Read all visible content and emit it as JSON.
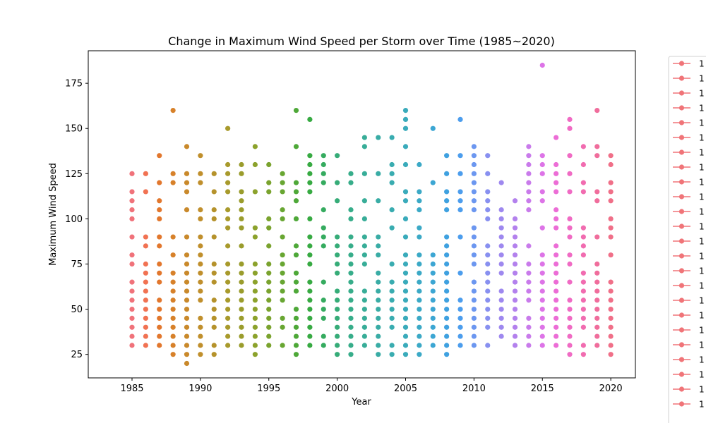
{
  "chart_data": {
    "type": "scatter",
    "title": "Change in Maximum Wind Speed per Storm over Time (1985~2020)",
    "xlabel": "Year",
    "ylabel": "Maximum Wind Speed",
    "xlim": [
      1981.8,
      2021.8
    ],
    "ylim": [
      12,
      193
    ],
    "xticks": [
      1985,
      1990,
      1995,
      2000,
      2005,
      2010,
      2015,
      2020
    ],
    "yticks": [
      25,
      50,
      75,
      100,
      125,
      150,
      175
    ],
    "grid": false,
    "legend": {
      "placement": "right-outside",
      "marker_color": "#f07478",
      "labels": [
        "1",
        "1",
        "1",
        "1",
        "1",
        "1",
        "1",
        "1",
        "1",
        "1",
        "1",
        "1",
        "1",
        "1",
        "1",
        "1",
        "1",
        "1",
        "1",
        "1",
        "1",
        "1",
        "1",
        "1"
      ]
    },
    "series": [
      {
        "x": 1985,
        "color": "#f0727a",
        "y": [
          30,
          35,
          40,
          45,
          50,
          55,
          60,
          65,
          75,
          80,
          90,
          100,
          105,
          110,
          115,
          125
        ]
      },
      {
        "x": 1986,
        "color": "#f17252",
        "y": [
          30,
          35,
          40,
          45,
          50,
          55,
          60,
          65,
          70,
          75,
          85,
          90,
          115,
          125
        ]
      },
      {
        "x": 1987,
        "color": "#e2772d",
        "y": [
          30,
          35,
          40,
          45,
          50,
          55,
          65,
          70,
          75,
          85,
          90,
          100,
          105,
          110,
          120,
          135
        ]
      },
      {
        "x": 1988,
        "color": "#d7812a",
        "y": [
          25,
          30,
          35,
          40,
          45,
          50,
          55,
          60,
          65,
          70,
          80,
          90,
          120,
          125,
          160
        ]
      },
      {
        "x": 1989,
        "color": "#c9892b",
        "y": [
          20,
          25,
          30,
          35,
          40,
          45,
          50,
          55,
          60,
          65,
          70,
          75,
          80,
          90,
          105,
          115,
          120,
          125,
          140
        ]
      },
      {
        "x": 1990,
        "color": "#c08f2c",
        "y": [
          25,
          30,
          35,
          40,
          45,
          55,
          60,
          65,
          70,
          75,
          80,
          85,
          90,
          100,
          105,
          120,
          125,
          135
        ]
      },
      {
        "x": 1991,
        "color": "#b5922b",
        "y": [
          25,
          30,
          40,
          45,
          50,
          55,
          65,
          70,
          75,
          90,
          100,
          105,
          115,
          125
        ]
      },
      {
        "x": 1992,
        "color": "#a89a2c",
        "y": [
          30,
          35,
          40,
          45,
          50,
          55,
          60,
          65,
          70,
          75,
          85,
          95,
          100,
          105,
          115,
          120,
          125,
          130,
          150
        ]
      },
      {
        "x": 1993,
        "color": "#9a9c2c",
        "y": [
          30,
          35,
          40,
          45,
          50,
          55,
          60,
          65,
          70,
          75,
          85,
          95,
          100,
          105,
          110,
          115,
          125,
          130
        ]
      },
      {
        "x": 1994,
        "color": "#8ca22c",
        "y": [
          25,
          30,
          35,
          40,
          45,
          50,
          55,
          60,
          65,
          70,
          75,
          90,
          95,
          115,
          130,
          140
        ]
      },
      {
        "x": 1995,
        "color": "#7aa32e",
        "y": [
          30,
          35,
          40,
          45,
          50,
          55,
          60,
          65,
          70,
          75,
          85,
          95,
          100,
          115,
          120,
          130
        ]
      },
      {
        "x": 1996,
        "color": "#68a632",
        "y": [
          30,
          40,
          45,
          55,
          60,
          65,
          70,
          75,
          80,
          90,
          100,
          105,
          115,
          120,
          125
        ]
      },
      {
        "x": 1997,
        "color": "#4ea838",
        "y": [
          25,
          30,
          35,
          40,
          45,
          50,
          60,
          65,
          70,
          80,
          85,
          100,
          110,
          115,
          120,
          140,
          160
        ]
      },
      {
        "x": 1998,
        "color": "#37aa42",
        "y": [
          30,
          35,
          40,
          45,
          50,
          55,
          60,
          65,
          75,
          80,
          85,
          90,
          100,
          115,
          120,
          125,
          130,
          135,
          155
        ]
      },
      {
        "x": 1999,
        "color": "#35ab5f",
        "y": [
          30,
          35,
          45,
          50,
          55,
          65,
          85,
          90,
          95,
          105,
          120,
          125,
          130,
          135
        ]
      },
      {
        "x": 2000,
        "color": "#36ac78",
        "y": [
          25,
          30,
          35,
          40,
          45,
          50,
          55,
          60,
          70,
          75,
          80,
          85,
          90,
          110,
          120,
          135
        ]
      },
      {
        "x": 2001,
        "color": "#37ad8a",
        "y": [
          25,
          30,
          35,
          40,
          45,
          50,
          55,
          60,
          65,
          70,
          75,
          80,
          85,
          90,
          100,
          105,
          120,
          125
        ]
      },
      {
        "x": 2002,
        "color": "#38ad98",
        "y": [
          30,
          35,
          40,
          45,
          50,
          55,
          60,
          75,
          80,
          85,
          90,
          100,
          110,
          125,
          140,
          145
        ]
      },
      {
        "x": 2003,
        "color": "#39aca5",
        "y": [
          25,
          30,
          35,
          40,
          45,
          50,
          55,
          60,
          65,
          70,
          80,
          85,
          90,
          110,
          125,
          145
        ]
      },
      {
        "x": 2004,
        "color": "#39acb0",
        "y": [
          25,
          30,
          40,
          45,
          50,
          55,
          60,
          65,
          75,
          95,
          105,
          120,
          125,
          130,
          145
        ]
      },
      {
        "x": 2005,
        "color": "#3aabbb",
        "y": [
          25,
          30,
          35,
          40,
          45,
          50,
          55,
          60,
          65,
          70,
          75,
          80,
          90,
          100,
          110,
          115,
          130,
          140,
          150,
          155,
          160
        ]
      },
      {
        "x": 2006,
        "color": "#3ba9c6",
        "y": [
          25,
          30,
          35,
          40,
          45,
          50,
          55,
          60,
          65,
          70,
          75,
          80,
          90,
          95,
          105,
          110,
          115,
          130
        ]
      },
      {
        "x": 2007,
        "color": "#3ca6d3",
        "y": [
          30,
          35,
          40,
          45,
          50,
          55,
          60,
          65,
          70,
          75,
          80,
          120,
          150
        ]
      },
      {
        "x": 2008,
        "color": "#3fa1e0",
        "y": [
          25,
          30,
          35,
          40,
          45,
          50,
          55,
          60,
          65,
          70,
          75,
          80,
          85,
          90,
          105,
          110,
          115,
          125,
          135
        ]
      },
      {
        "x": 2009,
        "color": "#4c9ded",
        "y": [
          30,
          35,
          40,
          45,
          50,
          55,
          70,
          90,
          105,
          110,
          115,
          125,
          135,
          155
        ]
      },
      {
        "x": 2010,
        "color": "#6c97f0",
        "y": [
          30,
          35,
          40,
          45,
          50,
          55,
          60,
          65,
          75,
          80,
          85,
          90,
          95,
          105,
          110,
          115,
          120,
          125,
          130,
          135,
          140
        ]
      },
      {
        "x": 2011,
        "color": "#8890f0",
        "y": [
          30,
          40,
          45,
          50,
          55,
          60,
          65,
          70,
          75,
          80,
          85,
          100,
          105,
          110,
          115,
          125,
          135
        ]
      },
      {
        "x": 2012,
        "color": "#9e88ef",
        "y": [
          35,
          40,
          45,
          50,
          55,
          60,
          70,
          75,
          80,
          85,
          90,
          95,
          100,
          105,
          120
        ]
      },
      {
        "x": 2013,
        "color": "#b381ed",
        "y": [
          30,
          35,
          40,
          45,
          50,
          55,
          60,
          65,
          70,
          75,
          80,
          85,
          90,
          95,
          100,
          110
        ]
      },
      {
        "x": 2014,
        "color": "#c97beb",
        "y": [
          30,
          35,
          40,
          45,
          55,
          60,
          65,
          70,
          75,
          85,
          105,
          110,
          115,
          120,
          125,
          130,
          135,
          140
        ]
      },
      {
        "x": 2015,
        "color": "#dd74e7",
        "y": [
          30,
          35,
          40,
          45,
          50,
          55,
          60,
          65,
          70,
          75,
          80,
          95,
          110,
          115,
          125,
          130,
          135,
          185
        ]
      },
      {
        "x": 2016,
        "color": "#ec6dd6",
        "y": [
          30,
          35,
          40,
          45,
          50,
          55,
          60,
          65,
          70,
          75,
          80,
          85,
          95,
          100,
          105,
          115,
          120,
          125,
          130,
          145
        ]
      },
      {
        "x": 2017,
        "color": "#f06bc4",
        "y": [
          25,
          30,
          35,
          40,
          45,
          50,
          55,
          65,
          75,
          80,
          90,
          95,
          100,
          115,
          125,
          135,
          150,
          155
        ]
      },
      {
        "x": 2018,
        "color": "#f16cb0",
        "y": [
          25,
          30,
          40,
          45,
          50,
          55,
          60,
          65,
          70,
          80,
          85,
          90,
          95,
          115,
          120,
          130,
          140
        ]
      },
      {
        "x": 2019,
        "color": "#f06d9c",
        "y": [
          30,
          35,
          40,
          45,
          50,
          55,
          60,
          65,
          70,
          75,
          90,
          110,
          115,
          135,
          140,
          160
        ]
      },
      {
        "x": 2020,
        "color": "#f06f88",
        "y": [
          25,
          30,
          35,
          40,
          45,
          50,
          55,
          60,
          65,
          80,
          90,
          95,
          100,
          110,
          115,
          120,
          130,
          135
        ]
      }
    ]
  }
}
